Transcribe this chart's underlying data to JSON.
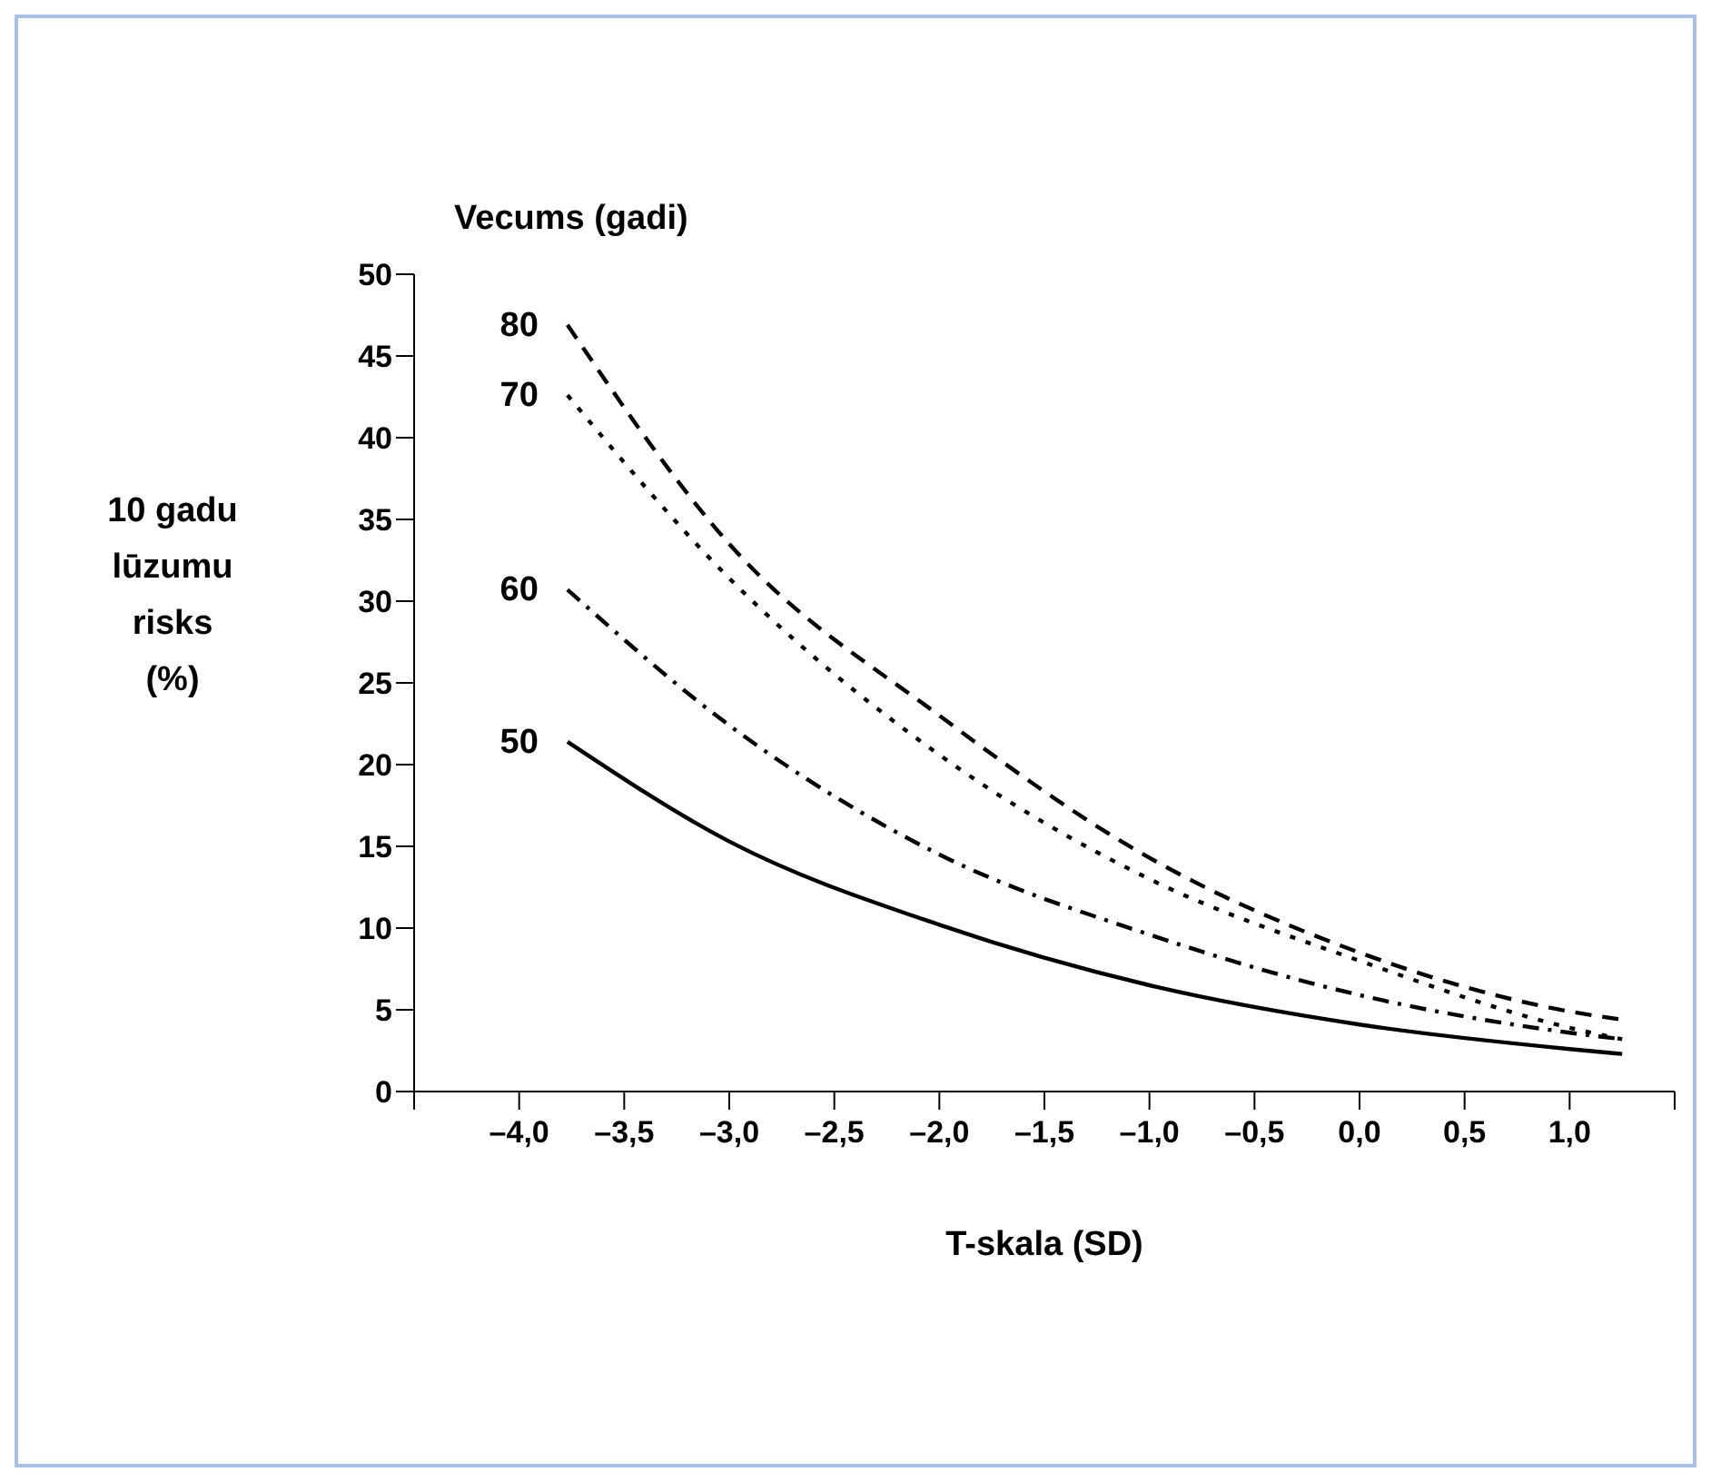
{
  "chart_data": {
    "type": "line",
    "legend_title": "Vecums (gadi)",
    "ylabel": "10 gadu\nlūzumu\nrisks\n(%)",
    "xlabel": "T-skala (SD)",
    "x": [
      -3.77,
      -3.0,
      -2.0,
      -1.0,
      0.0,
      1.0,
      1.25
    ],
    "series": [
      {
        "name": "80",
        "color": "#000000",
        "line_style": "dashed",
        "values": [
          46.9,
          33.5,
          23.0,
          14.3,
          8.5,
          4.9,
          4.4
        ]
      },
      {
        "name": "70",
        "color": "#000000",
        "line_style": "dotted",
        "values": [
          42.6,
          31.4,
          20.6,
          13.0,
          8.0,
          3.9,
          3.2
        ]
      },
      {
        "name": "60",
        "color": "#000000",
        "line_style": "dashdot",
        "values": [
          30.7,
          22.4,
          14.5,
          9.6,
          5.9,
          3.6,
          3.2
        ]
      },
      {
        "name": "50",
        "color": "#000000",
        "line_style": "solid",
        "values": [
          21.4,
          15.3,
          10.2,
          6.5,
          4.1,
          2.6,
          2.3
        ]
      }
    ],
    "xlim": [
      -4.5,
      1.5
    ],
    "xticks": [
      {
        "value": -4.5,
        "label": null
      },
      {
        "value": -4.0,
        "label": "–4,0"
      },
      {
        "value": -3.5,
        "label": "–3,5"
      },
      {
        "value": -3.0,
        "label": "–3,0"
      },
      {
        "value": -2.5,
        "label": "–2,5"
      },
      {
        "value": -2.0,
        "label": "–2,0"
      },
      {
        "value": -1.5,
        "label": "–1,5"
      },
      {
        "value": -1.0,
        "label": "–1,0"
      },
      {
        "value": -0.5,
        "label": "–0,5"
      },
      {
        "value": 0.0,
        "label": "0,0"
      },
      {
        "value": 0.5,
        "label": "0,5"
      },
      {
        "value": 1.0,
        "label": "1,0"
      },
      {
        "value": 1.5,
        "label": null
      }
    ],
    "ylim": [
      0,
      50
    ],
    "yticks": [
      0,
      5,
      10,
      15,
      20,
      25,
      30,
      35,
      40,
      45,
      50
    ],
    "marker": "none"
  }
}
